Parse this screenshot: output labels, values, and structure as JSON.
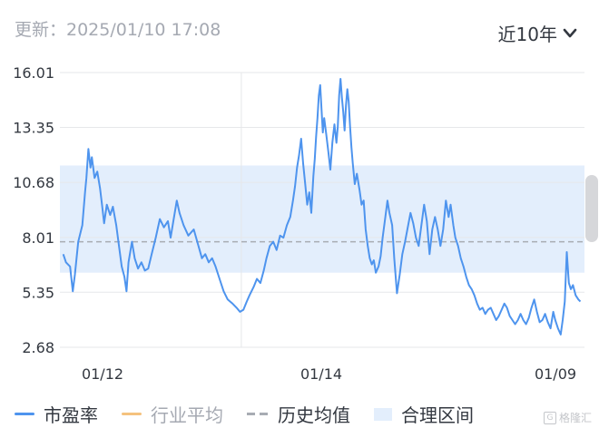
{
  "header": {
    "update_text": "更新：2025/01/10 17:08",
    "range_label": "近10年"
  },
  "colors": {
    "pe_line": "#4e94ee",
    "industry_avg": "#f5c27e",
    "hist_avg": "#a8acb3",
    "band_fill": "#e3eefc"
  },
  "chart_data": {
    "type": "line",
    "title": "",
    "xlabel": "",
    "ylabel": "",
    "ylim": [
      2.68,
      16.01
    ],
    "y_ticks": [
      "16.01",
      "13.35",
      "10.68",
      "8.01",
      "5.35",
      "2.68"
    ],
    "x_ticks": [
      {
        "label": "01/12",
        "x": 2012.0
      },
      {
        "label": "01/14",
        "x": 2014.0
      },
      {
        "label": "01/09",
        "x": 2025.0
      }
    ],
    "grid": {
      "horizontal": true,
      "vertical_at": [
        "01/14"
      ]
    },
    "historical_average": 7.8,
    "reasonable_range": [
      6.3,
      11.5
    ],
    "series": [
      {
        "name": "市盈率",
        "color": "#4e94ee",
        "points": [
          [
            2011.38,
            7.2
          ],
          [
            2011.42,
            6.8
          ],
          [
            2011.48,
            6.6
          ],
          [
            2011.52,
            5.4
          ],
          [
            2011.55,
            6.2
          ],
          [
            2011.6,
            7.8
          ],
          [
            2011.66,
            8.6
          ],
          [
            2011.7,
            10.2
          ],
          [
            2011.72,
            10.9
          ],
          [
            2011.75,
            12.3
          ],
          [
            2011.78,
            11.4
          ],
          [
            2011.8,
            11.9
          ],
          [
            2011.84,
            10.9
          ],
          [
            2011.88,
            11.2
          ],
          [
            2011.92,
            10.4
          ],
          [
            2011.95,
            9.6
          ],
          [
            2011.98,
            8.7
          ],
          [
            2012.02,
            9.6
          ],
          [
            2012.07,
            9.1
          ],
          [
            2012.11,
            9.5
          ],
          [
            2012.16,
            8.6
          ],
          [
            2012.2,
            7.6
          ],
          [
            2012.24,
            6.6
          ],
          [
            2012.28,
            6.1
          ],
          [
            2012.31,
            5.4
          ],
          [
            2012.34,
            6.8
          ],
          [
            2012.39,
            7.8
          ],
          [
            2012.43,
            7.0
          ],
          [
            2012.48,
            6.5
          ],
          [
            2012.53,
            6.8
          ],
          [
            2012.58,
            6.4
          ],
          [
            2012.63,
            6.5
          ],
          [
            2012.68,
            7.2
          ],
          [
            2012.74,
            8.0
          ],
          [
            2012.8,
            8.9
          ],
          [
            2012.86,
            8.5
          ],
          [
            2012.92,
            8.8
          ],
          [
            2012.96,
            8.0
          ],
          [
            2013.0,
            8.8
          ],
          [
            2013.05,
            9.8
          ],
          [
            2013.09,
            9.2
          ],
          [
            2013.15,
            8.6
          ],
          [
            2013.22,
            8.1
          ],
          [
            2013.3,
            8.4
          ],
          [
            2013.36,
            7.7
          ],
          [
            2013.42,
            7.0
          ],
          [
            2013.47,
            7.2
          ],
          [
            2013.52,
            6.8
          ],
          [
            2013.57,
            7.0
          ],
          [
            2013.62,
            6.6
          ],
          [
            2013.68,
            6.0
          ],
          [
            2013.74,
            5.4
          ],
          [
            2013.8,
            5.0
          ],
          [
            2013.87,
            4.8
          ],
          [
            2013.93,
            4.6
          ],
          [
            2013.98,
            4.4
          ],
          [
            2014.03,
            4.5
          ],
          [
            2014.08,
            4.9
          ],
          [
            2014.12,
            5.2
          ],
          [
            2014.18,
            5.6
          ],
          [
            2014.23,
            6.0
          ],
          [
            2014.28,
            5.8
          ],
          [
            2014.33,
            6.4
          ],
          [
            2014.37,
            7.0
          ],
          [
            2014.42,
            7.6
          ],
          [
            2014.47,
            7.8
          ],
          [
            2014.52,
            7.4
          ],
          [
            2014.57,
            8.1
          ],
          [
            2014.62,
            8.0
          ],
          [
            2014.67,
            8.6
          ],
          [
            2014.72,
            9.0
          ],
          [
            2014.76,
            9.8
          ],
          [
            2014.79,
            10.5
          ],
          [
            2014.82,
            11.4
          ],
          [
            2014.85,
            12.0
          ],
          [
            2014.88,
            12.8
          ],
          [
            2014.91,
            11.6
          ],
          [
            2014.94,
            10.6
          ],
          [
            2014.97,
            9.6
          ],
          [
            2015.0,
            10.2
          ],
          [
            2015.03,
            9.2
          ],
          [
            2015.06,
            11.0
          ],
          [
            2015.08,
            11.8
          ],
          [
            2015.1,
            12.9
          ],
          [
            2015.12,
            13.8
          ],
          [
            2015.14,
            14.9
          ],
          [
            2015.16,
            15.4
          ],
          [
            2015.18,
            14.2
          ],
          [
            2015.2,
            13.1
          ],
          [
            2015.22,
            13.8
          ],
          [
            2015.25,
            13.0
          ],
          [
            2015.28,
            12.2
          ],
          [
            2015.31,
            11.3
          ],
          [
            2015.34,
            12.6
          ],
          [
            2015.37,
            13.5
          ],
          [
            2015.4,
            12.6
          ],
          [
            2015.42,
            13.4
          ],
          [
            2015.44,
            14.9
          ],
          [
            2015.46,
            15.7
          ],
          [
            2015.48,
            14.8
          ],
          [
            2015.5,
            14.1
          ],
          [
            2015.52,
            13.2
          ],
          [
            2015.54,
            14.4
          ],
          [
            2015.56,
            15.2
          ],
          [
            2015.58,
            14.6
          ],
          [
            2015.6,
            13.4
          ],
          [
            2015.62,
            12.4
          ],
          [
            2015.64,
            11.6
          ],
          [
            2015.67,
            10.6
          ],
          [
            2015.7,
            11.1
          ],
          [
            2015.74,
            10.3
          ],
          [
            2015.77,
            9.6
          ],
          [
            2015.8,
            9.8
          ],
          [
            2015.83,
            8.4
          ],
          [
            2015.86,
            7.6
          ],
          [
            2015.89,
            7.0
          ],
          [
            2015.92,
            6.7
          ],
          [
            2015.95,
            6.9
          ],
          [
            2015.98,
            6.3
          ],
          [
            2016.02,
            6.6
          ],
          [
            2016.05,
            7.1
          ],
          [
            2016.08,
            8.0
          ],
          [
            2016.12,
            9.0
          ],
          [
            2016.15,
            9.8
          ],
          [
            2016.18,
            9.2
          ],
          [
            2016.22,
            8.6
          ],
          [
            2016.25,
            7.0
          ],
          [
            2016.29,
            5.3
          ],
          [
            2016.33,
            6.2
          ],
          [
            2016.37,
            7.2
          ],
          [
            2016.41,
            7.8
          ],
          [
            2016.45,
            8.5
          ],
          [
            2016.49,
            9.2
          ],
          [
            2016.53,
            8.7
          ],
          [
            2016.57,
            8.0
          ],
          [
            2016.61,
            7.6
          ],
          [
            2016.65,
            8.6
          ],
          [
            2016.69,
            9.6
          ],
          [
            2016.73,
            8.8
          ],
          [
            2016.77,
            7.2
          ],
          [
            2016.81,
            8.4
          ],
          [
            2016.85,
            9.0
          ],
          [
            2016.89,
            8.4
          ],
          [
            2016.93,
            7.6
          ],
          [
            2016.97,
            8.4
          ],
          [
            2017.01,
            9.8
          ],
          [
            2017.05,
            9.0
          ],
          [
            2017.08,
            9.6
          ],
          [
            2017.12,
            8.6
          ],
          [
            2017.15,
            8.0
          ],
          [
            2017.19,
            7.6
          ],
          [
            2017.23,
            7.0
          ],
          [
            2017.27,
            6.6
          ],
          [
            2017.31,
            6.1
          ],
          [
            2017.35,
            5.7
          ],
          [
            2017.39,
            5.5
          ],
          [
            2017.43,
            5.2
          ],
          [
            2017.47,
            4.8
          ],
          [
            2017.51,
            4.5
          ],
          [
            2017.55,
            4.6
          ],
          [
            2017.59,
            4.3
          ],
          [
            2017.63,
            4.5
          ],
          [
            2017.67,
            4.6
          ],
          [
            2017.71,
            4.3
          ],
          [
            2017.75,
            4.0
          ],
          [
            2017.79,
            4.2
          ],
          [
            2017.83,
            4.5
          ],
          [
            2017.87,
            4.8
          ],
          [
            2017.91,
            4.6
          ],
          [
            2017.95,
            4.2
          ],
          [
            2017.99,
            4.0
          ],
          [
            2018.03,
            3.8
          ],
          [
            2018.07,
            4.0
          ],
          [
            2018.11,
            4.3
          ],
          [
            2018.15,
            4.0
          ],
          [
            2018.19,
            3.8
          ],
          [
            2018.23,
            4.1
          ],
          [
            2018.27,
            4.6
          ],
          [
            2018.31,
            5.0
          ],
          [
            2018.35,
            4.4
          ],
          [
            2018.39,
            3.9
          ],
          [
            2018.43,
            4.0
          ],
          [
            2018.47,
            4.3
          ],
          [
            2018.51,
            3.9
          ],
          [
            2018.55,
            3.6
          ],
          [
            2018.59,
            4.4
          ],
          [
            2018.62,
            4.0
          ],
          [
            2018.66,
            3.6
          ],
          [
            2018.7,
            3.3
          ],
          [
            2018.73,
            4.0
          ],
          [
            2018.76,
            4.9
          ],
          [
            2018.79,
            7.3
          ],
          [
            2018.82,
            5.8
          ],
          [
            2018.85,
            5.5
          ],
          [
            2018.88,
            5.7
          ],
          [
            2018.92,
            5.2
          ],
          [
            2018.96,
            5.0
          ],
          [
            2018.99,
            4.9
          ]
        ]
      }
    ],
    "legend": {
      "placement": "bottom",
      "items": [
        {
          "label": "市盈率",
          "kind": "line",
          "color": "#4e94ee"
        },
        {
          "label": "行业平均",
          "kind": "line",
          "color": "#f5c27e",
          "muted": true
        },
        {
          "label": "历史均值",
          "kind": "dash",
          "color": "#a8acb3"
        },
        {
          "label": "合理区间",
          "kind": "box",
          "color": "#e3eefc"
        }
      ]
    }
  },
  "watermark": {
    "glyph": "G",
    "text": "格隆汇"
  }
}
